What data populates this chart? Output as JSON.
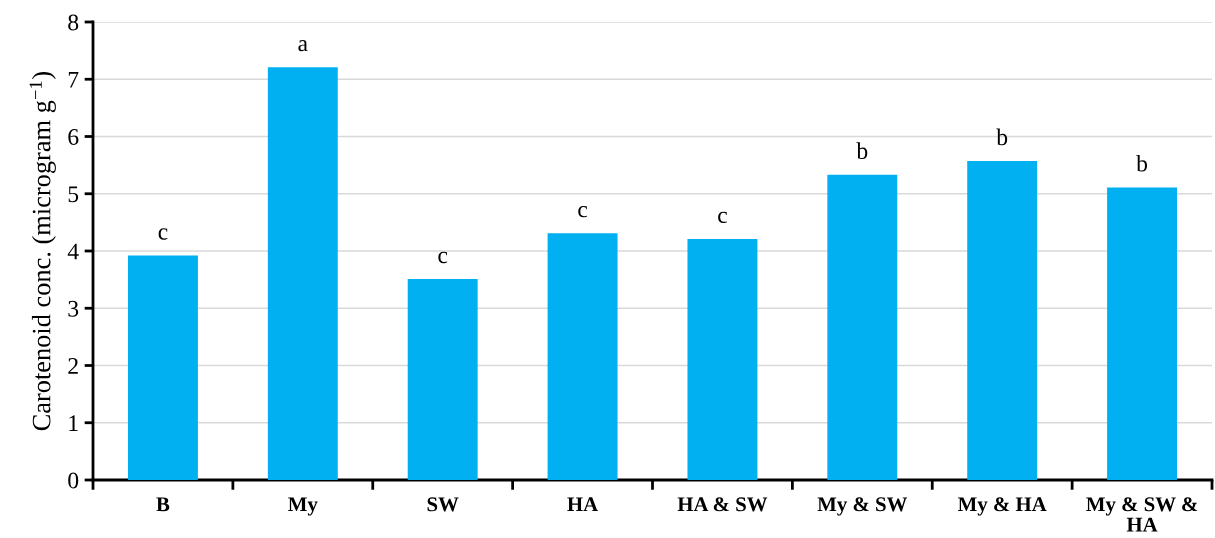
{
  "chart_data": {
    "type": "bar",
    "ylabel": "Carotenoid conc. (microgram g$^{−1}$)",
    "categories": [
      "B",
      "My",
      "SW",
      "HA",
      "HA & SW",
      "My & SW",
      "My & HA",
      "My & SW & HA"
    ],
    "values": [
      3.92,
      7.21,
      3.51,
      4.31,
      4.21,
      5.33,
      5.57,
      5.11
    ],
    "color": "#00b0f0",
    "ylim": [
      0,
      8
    ],
    "yticks": [
      0,
      1,
      2,
      3,
      4,
      5,
      6,
      7,
      8
    ],
    "grid": "y",
    "annotations": [
      {
        "text": "c",
        "x": "B",
        "y": 3.92
      },
      {
        "text": "a",
        "x": "My",
        "y": 7.21
      },
      {
        "text": "c",
        "x": "SW",
        "y": 3.51
      },
      {
        "text": "c",
        "x": "HA",
        "y": 4.31
      },
      {
        "text": "c",
        "x": "HA & SW",
        "y": 4.21
      },
      {
        "text": "b",
        "x": "My & SW",
        "y": 5.33
      },
      {
        "text": "b",
        "x": "My & HA",
        "y": 5.57
      },
      {
        "text": "b",
        "x": "My & SW & HA",
        "y": 5.11
      }
    ]
  }
}
